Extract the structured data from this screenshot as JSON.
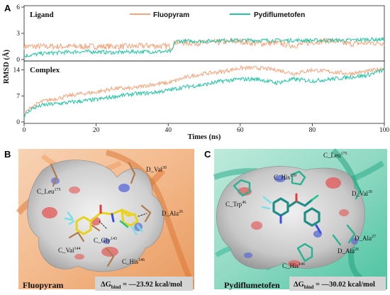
{
  "panel_a": {
    "label": "A",
    "ylabel": "RMSD (Å)",
    "xlabel": "Times (ns)",
    "x_ticks": [
      "0",
      "20",
      "40",
      "60",
      "80",
      "100"
    ],
    "legend": [
      "Fluopyram",
      "Pydiflumetofen"
    ],
    "colors": {
      "fluopyram": "#F4A57D",
      "pydiflumetofen": "#27C4A4"
    },
    "top": {
      "title": "Ligand",
      "y_ticks": [
        "0",
        "3",
        "6"
      ]
    },
    "bottom": {
      "title": "Complex",
      "y_ticks": [
        "0",
        "7",
        "14"
      ]
    }
  },
  "chart_data": [
    {
      "type": "line",
      "title": "Ligand",
      "xlabel": "Times (ns)",
      "ylabel": "RMSD (Å)",
      "xlim": [
        0,
        100
      ],
      "ylim": [
        0,
        6
      ],
      "grid": false,
      "legend_position": "top-right",
      "series": [
        {
          "name": "Fluopyram",
          "color": "#F4A57D",
          "x": [
            0,
            5,
            10,
            15,
            20,
            25,
            30,
            35,
            40,
            41,
            42,
            45,
            50,
            55,
            60,
            65,
            70,
            75,
            80,
            85,
            90,
            95,
            100
          ],
          "y": [
            1.5,
            1.5,
            1.5,
            1.5,
            1.5,
            1.5,
            1.5,
            1.6,
            1.5,
            1.5,
            2.0,
            1.9,
            1.9,
            2.0,
            2.1,
            1.8,
            1.9,
            1.6,
            2.0,
            2.2,
            1.8,
            1.9,
            1.9
          ]
        },
        {
          "name": "Pydiflumetofen",
          "color": "#27C4A4",
          "x": [
            0,
            5,
            10,
            15,
            20,
            25,
            30,
            35,
            40,
            41,
            42,
            45,
            50,
            55,
            60,
            65,
            70,
            75,
            80,
            85,
            90,
            95,
            100
          ],
          "y": [
            0.4,
            0.7,
            0.8,
            0.9,
            0.9,
            0.8,
            0.9,
            0.9,
            0.9,
            0.9,
            2.1,
            2.1,
            2.1,
            2.2,
            2.2,
            2.2,
            2.2,
            2.2,
            2.2,
            2.2,
            2.2,
            2.3,
            2.3
          ]
        }
      ]
    },
    {
      "type": "line",
      "title": "Complex",
      "xlabel": "Times (ns)",
      "ylabel": "RMSD (Å)",
      "xlim": [
        0,
        100
      ],
      "ylim": [
        0,
        16
      ],
      "grid": false,
      "series": [
        {
          "name": "Fluopyram",
          "color": "#F4A57D",
          "x": [
            0,
            2,
            5,
            10,
            15,
            20,
            25,
            30,
            35,
            40,
            45,
            50,
            55,
            60,
            65,
            70,
            75,
            80,
            85,
            90,
            95,
            100
          ],
          "y": [
            2.0,
            4.0,
            5.5,
            6.5,
            7.5,
            8.0,
            9.0,
            9.0,
            10.0,
            10.5,
            12.0,
            13.0,
            13.5,
            14.5,
            14.5,
            14.0,
            13.0,
            14.0,
            13.5,
            13.0,
            13.5,
            14.5
          ]
        },
        {
          "name": "Pydiflumetofen",
          "color": "#27C4A4",
          "x": [
            0,
            2,
            5,
            10,
            15,
            20,
            25,
            30,
            35,
            40,
            45,
            50,
            55,
            60,
            65,
            70,
            75,
            80,
            85,
            90,
            95,
            100
          ],
          "y": [
            1.5,
            3.5,
            4.5,
            5.0,
            5.5,
            6.0,
            6.8,
            7.5,
            7.8,
            8.5,
            9.5,
            10.0,
            11.0,
            11.5,
            11.5,
            10.5,
            11.5,
            11.0,
            11.5,
            12.0,
            12.5,
            14.0
          ]
        }
      ]
    }
  ],
  "panel_b": {
    "label": "B",
    "caption": "Fluopyram",
    "energy": "ΔG",
    "energy_sub": "bind",
    "energy_value": " = —23.92 kcal/mol",
    "residues": [
      {
        "name": "C_Leu",
        "sup": "175"
      },
      {
        "name": "D_Val",
        "sup": "30"
      },
      {
        "name": "D_Ala",
        "sup": "26"
      },
      {
        "name": "C_Gly",
        "sup": "143"
      },
      {
        "name": "C_Val",
        "sup": "144"
      },
      {
        "name": "C_His",
        "sup": "146"
      }
    ]
  },
  "panel_c": {
    "label": "C",
    "caption": "Pydiflumetofen",
    "energy": "ΔG",
    "energy_sub": "bind",
    "energy_value": " = —30.02 kcal/mol",
    "residues": [
      {
        "name": "C_Leu",
        "sup": "175"
      },
      {
        "name": "C_His",
        "sup": "139"
      },
      {
        "name": "C_Trp",
        "sup": "46"
      },
      {
        "name": "D_Val",
        "sup": "30"
      },
      {
        "name": "D_Ala",
        "sup": "27"
      },
      {
        "name": "D_Ala",
        "sup": "26"
      },
      {
        "name": "C_His",
        "sup": "146"
      }
    ]
  }
}
